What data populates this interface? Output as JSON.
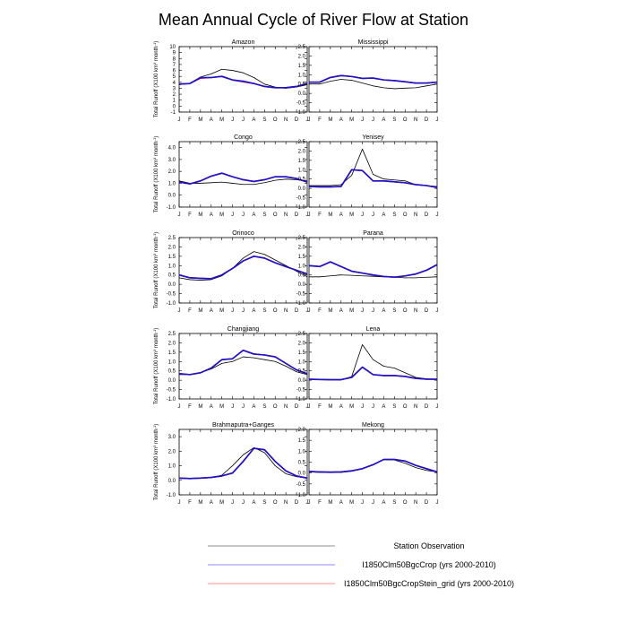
{
  "page": {
    "title": "Mean Annual Cycle of River Flow at Station",
    "ylabel_lines": [
      "Total Runoff (X100 km",
      "3",
      " month",
      "-1",
      ")"
    ]
  },
  "legend": {
    "entries": [
      {
        "label": "Station Observation",
        "color": "#000000"
      },
      {
        "label": "I1850Clm50BgcCrop (yrs 2000-2010)",
        "color": "#0000ff"
      },
      {
        "label": "I1850Clm50BgcCropStein_grid (yrs 2000-2010)",
        "color": "#ff0000"
      }
    ]
  },
  "colors": {
    "observation": "#000000",
    "model_a": "#1a14c8",
    "model_b": "#b4146e"
  },
  "chart_data": [
    {
      "type": "line",
      "title": "Amazon",
      "x": [
        "J",
        "F",
        "M",
        "A",
        "M",
        "J",
        "J",
        "A",
        "S",
        "O",
        "N",
        "D",
        "J"
      ],
      "ylim": [
        -1,
        10
      ],
      "yticks": [
        "-1",
        "0",
        "1",
        "2",
        "3",
        "4",
        "5",
        "6",
        "7",
        "8",
        "9",
        "10"
      ],
      "ytick_values": [
        -1,
        0,
        1,
        2,
        3,
        4,
        5,
        6,
        7,
        8,
        9,
        10
      ],
      "show_ylabel": true,
      "series": [
        {
          "role": "observation",
          "values": [
            3.6,
            3.8,
            4.9,
            5.4,
            6.2,
            6.0,
            5.6,
            4.8,
            3.7,
            3.2,
            3.0,
            3.2,
            3.6
          ]
        },
        {
          "role": "model_b",
          "values": [
            3.7,
            3.8,
            4.7,
            4.8,
            5.0,
            4.4,
            4.1,
            3.8,
            3.3,
            3.1,
            3.1,
            3.3,
            3.8
          ]
        },
        {
          "role": "model_a",
          "values": [
            3.7,
            3.8,
            4.8,
            4.8,
            5.0,
            4.4,
            4.2,
            3.8,
            3.3,
            3.1,
            3.1,
            3.3,
            3.8
          ]
        }
      ]
    },
    {
      "type": "line",
      "title": "Mississippi",
      "x": [
        "J",
        "F",
        "M",
        "A",
        "M",
        "J",
        "J",
        "A",
        "S",
        "O",
        "N",
        "D",
        "J"
      ],
      "ylim": [
        -1,
        2.5
      ],
      "yticks": [
        "-1.0",
        "-0.5",
        "0.0",
        "0.5",
        "1.0",
        "1.5",
        "2.0",
        "2.5"
      ],
      "ytick_values": [
        -1,
        -0.5,
        0,
        0.5,
        1,
        1.5,
        2,
        2.5
      ],
      "show_ylabel": false,
      "series": [
        {
          "role": "observation",
          "values": [
            0.5,
            0.5,
            0.65,
            0.75,
            0.7,
            0.55,
            0.4,
            0.3,
            0.25,
            0.28,
            0.3,
            0.4,
            0.5
          ]
        },
        {
          "role": "model_b",
          "values": [
            0.6,
            0.6,
            0.85,
            0.95,
            0.9,
            0.8,
            0.82,
            0.72,
            0.68,
            0.62,
            0.55,
            0.55,
            0.6
          ]
        },
        {
          "role": "model_a",
          "values": [
            0.6,
            0.6,
            0.85,
            0.95,
            0.9,
            0.8,
            0.82,
            0.72,
            0.68,
            0.62,
            0.55,
            0.55,
            0.6
          ]
        }
      ]
    },
    {
      "type": "line",
      "title": "Congo",
      "x": [
        "J",
        "F",
        "M",
        "A",
        "M",
        "J",
        "J",
        "A",
        "S",
        "O",
        "N",
        "D",
        "J"
      ],
      "ylim": [
        -1,
        4.5
      ],
      "yticks": [
        "-1.0",
        "0.0",
        "1.0",
        "2.0",
        "3.0",
        "4.0"
      ],
      "ytick_values": [
        -1,
        0,
        1,
        2,
        3,
        4
      ],
      "show_ylabel": true,
      "series": [
        {
          "role": "observation",
          "values": [
            1.2,
            1.0,
            1.0,
            1.05,
            1.1,
            1.0,
            0.9,
            0.9,
            1.05,
            1.25,
            1.35,
            1.3,
            1.2
          ]
        },
        {
          "role": "model_b",
          "values": [
            1.1,
            0.95,
            1.2,
            1.6,
            1.85,
            1.55,
            1.3,
            1.15,
            1.3,
            1.55,
            1.55,
            1.4,
            1.1
          ]
        },
        {
          "role": "model_a",
          "values": [
            1.1,
            0.95,
            1.2,
            1.6,
            1.85,
            1.55,
            1.3,
            1.15,
            1.3,
            1.55,
            1.55,
            1.4,
            1.1
          ]
        }
      ]
    },
    {
      "type": "line",
      "title": "Yenisey",
      "x": [
        "J",
        "F",
        "M",
        "A",
        "M",
        "J",
        "J",
        "A",
        "S",
        "O",
        "N",
        "D",
        "J"
      ],
      "ylim": [
        -1,
        2.5
      ],
      "yticks": [
        "-1.0",
        "-0.5",
        "0.0",
        "0.5",
        "1.0",
        "1.5",
        "2.0",
        "2.5"
      ],
      "ytick_values": [
        -1,
        -0.5,
        0,
        0.5,
        1,
        1.5,
        2,
        2.5
      ],
      "show_ylabel": false,
      "series": [
        {
          "role": "observation",
          "values": [
            0.15,
            0.15,
            0.15,
            0.2,
            0.7,
            2.1,
            0.75,
            0.5,
            0.45,
            0.4,
            0.2,
            0.15,
            0.1
          ]
        },
        {
          "role": "model_b",
          "values": [
            0.1,
            0.08,
            0.08,
            0.1,
            1.0,
            0.95,
            0.4,
            0.4,
            0.35,
            0.3,
            0.2,
            0.15,
            0.05
          ]
        },
        {
          "role": "model_a",
          "values": [
            0.1,
            0.08,
            0.08,
            0.1,
            1.0,
            0.95,
            0.4,
            0.4,
            0.35,
            0.3,
            0.2,
            0.15,
            0.05
          ]
        }
      ]
    },
    {
      "type": "line",
      "title": "Orinoco",
      "x": [
        "J",
        "F",
        "M",
        "A",
        "M",
        "J",
        "J",
        "A",
        "S",
        "O",
        "N",
        "D",
        "J"
      ],
      "ylim": [
        -1,
        2.5
      ],
      "yticks": [
        "-1.0",
        "-0.5",
        "0.0",
        "0.5",
        "1.0",
        "1.5",
        "2.0",
        "2.5"
      ],
      "ytick_values": [
        -1,
        -0.5,
        0,
        0.5,
        1,
        1.5,
        2,
        2.5
      ],
      "show_ylabel": true,
      "series": [
        {
          "role": "observation",
          "values": [
            0.35,
            0.25,
            0.22,
            0.25,
            0.45,
            0.85,
            1.4,
            1.75,
            1.6,
            1.3,
            1.0,
            0.7,
            0.4
          ]
        },
        {
          "role": "model_b",
          "values": [
            0.5,
            0.35,
            0.32,
            0.3,
            0.5,
            0.85,
            1.25,
            1.5,
            1.4,
            1.15,
            0.95,
            0.75,
            0.55
          ]
        },
        {
          "role": "model_a",
          "values": [
            0.5,
            0.35,
            0.32,
            0.3,
            0.5,
            0.85,
            1.25,
            1.5,
            1.4,
            1.15,
            0.95,
            0.75,
            0.55
          ]
        }
      ]
    },
    {
      "type": "line",
      "title": "Parana",
      "x": [
        "J",
        "F",
        "M",
        "A",
        "M",
        "J",
        "J",
        "A",
        "S",
        "O",
        "N",
        "D",
        "J"
      ],
      "ylim": [
        -1,
        2.5
      ],
      "yticks": [
        "-1.0",
        "-0.5",
        "0.0",
        "0.5",
        "1.0",
        "1.5",
        "2.0",
        "2.5"
      ],
      "ytick_values": [
        -1,
        -0.5,
        0,
        0.5,
        1,
        1.5,
        2,
        2.5
      ],
      "show_ylabel": false,
      "series": [
        {
          "role": "observation",
          "values": [
            0.4,
            0.4,
            0.45,
            0.5,
            0.48,
            0.45,
            0.43,
            0.4,
            0.38,
            0.35,
            0.35,
            0.38,
            0.4
          ]
        },
        {
          "role": "model_b",
          "values": [
            1.0,
            0.95,
            1.2,
            0.95,
            0.7,
            0.6,
            0.5,
            0.42,
            0.38,
            0.45,
            0.55,
            0.75,
            1.05
          ]
        },
        {
          "role": "model_a",
          "values": [
            1.0,
            0.95,
            1.2,
            0.95,
            0.7,
            0.6,
            0.5,
            0.42,
            0.38,
            0.45,
            0.55,
            0.75,
            1.05
          ]
        }
      ]
    },
    {
      "type": "line",
      "title": "Changjiang",
      "x": [
        "J",
        "F",
        "M",
        "A",
        "M",
        "J",
        "J",
        "A",
        "S",
        "O",
        "N",
        "D",
        "J"
      ],
      "ylim": [
        -1,
        2.5
      ],
      "yticks": [
        "-1.0",
        "-0.5",
        "0.0",
        "0.5",
        "1.0",
        "1.5",
        "2.0",
        "2.5"
      ],
      "ytick_values": [
        -1,
        -0.5,
        0,
        0.5,
        1,
        1.5,
        2,
        2.5
      ],
      "show_ylabel": true,
      "series": [
        {
          "role": "observation",
          "values": [
            0.3,
            0.3,
            0.4,
            0.6,
            0.9,
            1.0,
            1.25,
            1.2,
            1.1,
            1.0,
            0.75,
            0.45,
            0.3
          ]
        },
        {
          "role": "model_b",
          "values": [
            0.35,
            0.3,
            0.4,
            0.65,
            1.1,
            1.15,
            1.6,
            1.4,
            1.35,
            1.25,
            0.9,
            0.55,
            0.35
          ]
        },
        {
          "role": "model_a",
          "values": [
            0.35,
            0.3,
            0.4,
            0.65,
            1.1,
            1.15,
            1.6,
            1.4,
            1.35,
            1.25,
            0.9,
            0.55,
            0.35
          ]
        }
      ]
    },
    {
      "type": "line",
      "title": "Lena",
      "x": [
        "J",
        "F",
        "M",
        "A",
        "M",
        "J",
        "J",
        "A",
        "S",
        "O",
        "N",
        "D",
        "J"
      ],
      "ylim": [
        -1,
        2.5
      ],
      "yticks": [
        "-1.0",
        "-0.5",
        "0.0",
        "0.5",
        "1.0",
        "1.5",
        "2.0",
        "2.5"
      ],
      "ytick_values": [
        -1,
        -0.5,
        0,
        0.5,
        1,
        1.5,
        2,
        2.5
      ],
      "show_ylabel": false,
      "series": [
        {
          "role": "observation",
          "values": [
            0.05,
            0.03,
            0.02,
            0.02,
            0.2,
            1.9,
            1.1,
            0.75,
            0.65,
            0.4,
            0.15,
            0.08,
            0.05
          ]
        },
        {
          "role": "model_b",
          "values": [
            0.05,
            0.04,
            0.03,
            0.03,
            0.15,
            0.7,
            0.3,
            0.25,
            0.25,
            0.2,
            0.1,
            0.06,
            0.05
          ]
        },
        {
          "role": "model_a",
          "values": [
            0.05,
            0.04,
            0.03,
            0.03,
            0.15,
            0.7,
            0.3,
            0.25,
            0.25,
            0.2,
            0.1,
            0.06,
            0.05
          ]
        }
      ]
    },
    {
      "type": "line",
      "title": "Brahmaputra+Ganges",
      "x": [
        "J",
        "F",
        "M",
        "A",
        "M",
        "J",
        "J",
        "A",
        "S",
        "O",
        "N",
        "D",
        "J"
      ],
      "ylim": [
        -1,
        3.5
      ],
      "yticks": [
        "-1.0",
        "0.0",
        "1.0",
        "2.0",
        "3.0"
      ],
      "ytick_values": [
        -1,
        0,
        1,
        2,
        3
      ],
      "show_ylabel": true,
      "series": [
        {
          "role": "observation",
          "values": [
            0.15,
            0.12,
            0.15,
            0.2,
            0.35,
            1.0,
            1.75,
            2.25,
            1.9,
            1.0,
            0.45,
            0.25,
            0.15
          ]
        },
        {
          "role": "model_b",
          "values": [
            0.15,
            0.12,
            0.15,
            0.2,
            0.3,
            0.5,
            1.3,
            2.2,
            2.1,
            1.3,
            0.65,
            0.3,
            0.15
          ]
        },
        {
          "role": "model_a",
          "values": [
            0.15,
            0.12,
            0.15,
            0.2,
            0.3,
            0.5,
            1.3,
            2.2,
            2.1,
            1.3,
            0.65,
            0.3,
            0.15
          ]
        }
      ]
    },
    {
      "type": "line",
      "title": "Mekong",
      "x": [
        "J",
        "F",
        "M",
        "A",
        "M",
        "J",
        "J",
        "A",
        "S",
        "O",
        "N",
        "D",
        "J"
      ],
      "ylim": [
        -1,
        2.0
      ],
      "yticks": [
        "-1.0",
        "-0.5",
        "0.0",
        "0.5",
        "1.0",
        "1.5",
        "2.0"
      ],
      "ytick_values": [
        -1,
        -0.5,
        0,
        0.5,
        1,
        1.5,
        2
      ],
      "show_ylabel": false,
      "series": [
        {
          "role": "observation",
          "values": [
            0.05,
            0.03,
            0.02,
            0.03,
            0.08,
            0.2,
            0.4,
            0.62,
            0.6,
            0.45,
            0.25,
            0.12,
            0.05
          ]
        },
        {
          "role": "model_b",
          "values": [
            0.07,
            0.05,
            0.04,
            0.05,
            0.1,
            0.2,
            0.38,
            0.62,
            0.62,
            0.55,
            0.35,
            0.2,
            0.05
          ]
        },
        {
          "role": "model_a",
          "values": [
            0.07,
            0.05,
            0.04,
            0.05,
            0.1,
            0.2,
            0.38,
            0.62,
            0.62,
            0.55,
            0.35,
            0.2,
            0.05
          ]
        }
      ]
    }
  ]
}
